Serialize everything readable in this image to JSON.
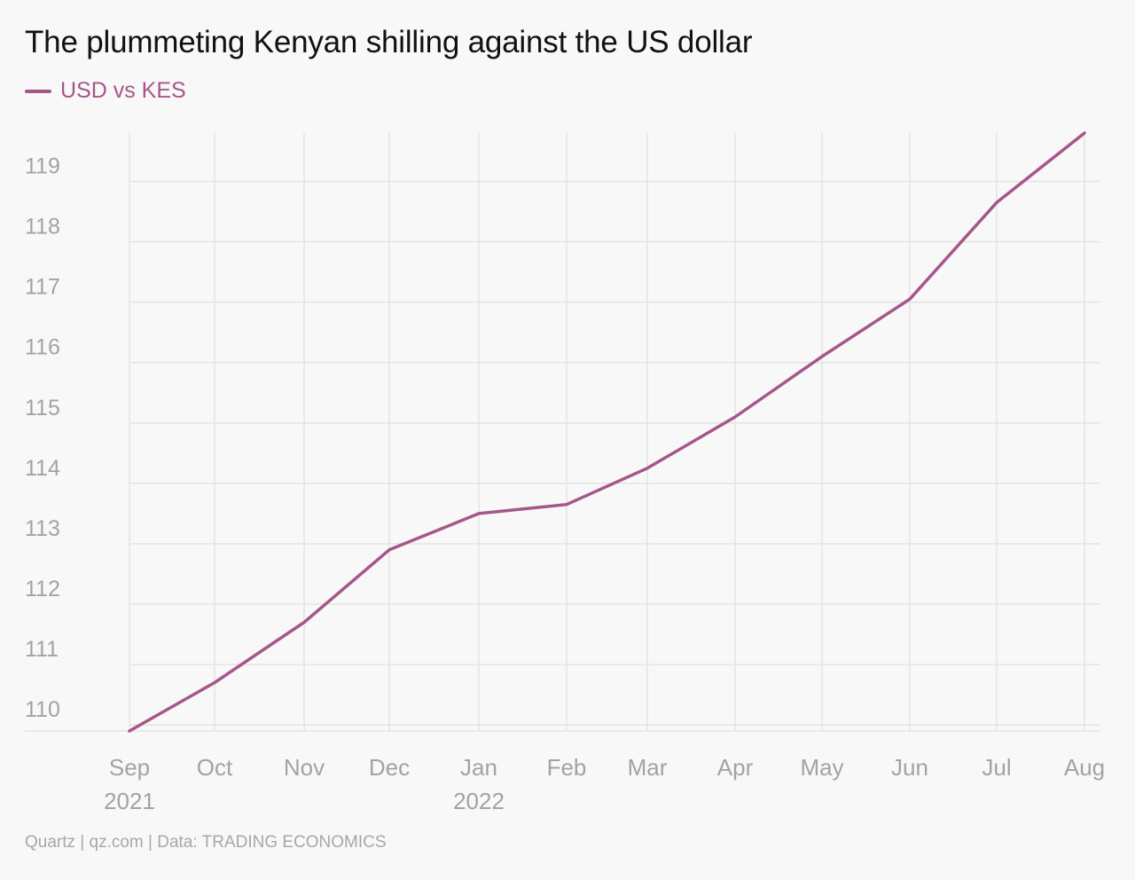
{
  "title": "The plummeting Kenyan shilling against the US dollar",
  "footer": "Quartz | qz.com | Data: TRADING ECONOMICS",
  "colors": {
    "series": "#a5578a",
    "grid": "#e4e4e4",
    "tick_text": "#a3a3a3",
    "background": "#f8f8f8"
  },
  "chart_data": {
    "type": "line",
    "x": [
      "Sep",
      "Oct",
      "Nov",
      "Dec",
      "Jan",
      "Feb",
      "Mar",
      "Apr",
      "May",
      "Jun",
      "Jul",
      "Aug"
    ],
    "x_secondary_labels": [
      "2021",
      "",
      "",
      "",
      "2022",
      "",
      "",
      "",
      "",
      "",
      "",
      ""
    ],
    "series": [
      {
        "name": "USD vs KES",
        "values": [
          109.9,
          110.7,
          111.7,
          112.9,
          113.5,
          113.65,
          114.25,
          115.1,
          116.1,
          117.05,
          118.65,
          119.8
        ]
      }
    ],
    "y_ticks": [
      110,
      111,
      112,
      113,
      114,
      115,
      116,
      117,
      118,
      119
    ],
    "ylim": [
      109.9,
      119.8
    ],
    "grid": true,
    "legend_position": "top-left",
    "xlabel": "",
    "ylabel": ""
  }
}
